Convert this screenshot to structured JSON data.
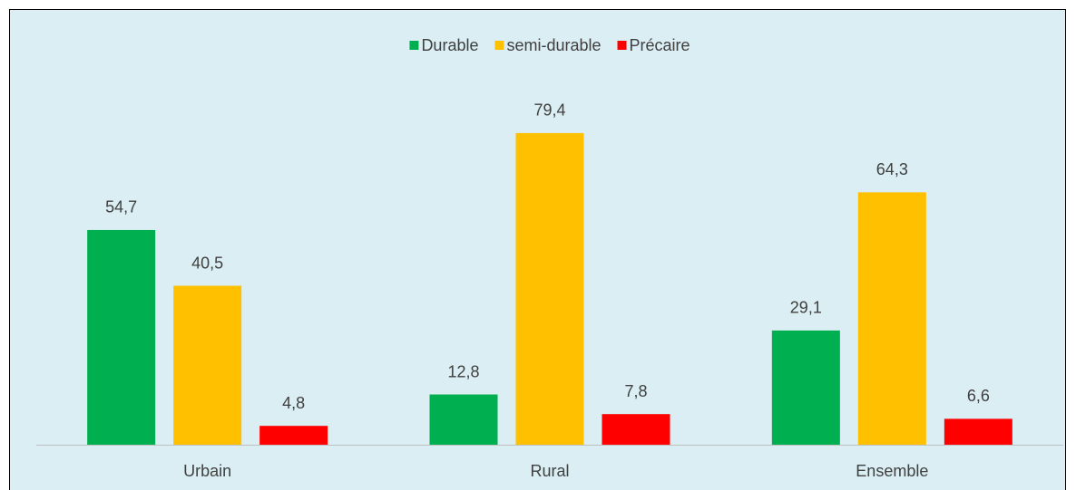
{
  "chart_data": {
    "type": "bar",
    "categories": [
      "Urbain",
      "Rural",
      "Ensemble"
    ],
    "series": [
      {
        "name": "Durable",
        "color": "#00b050",
        "values": [
          54.7,
          12.8,
          29.1
        ],
        "value_labels": [
          "54,7",
          "12,8",
          "29,1"
        ]
      },
      {
        "name": "semi-durable",
        "color": "#ffc000",
        "values": [
          40.5,
          79.4,
          64.3
        ],
        "value_labels": [
          "40,5",
          "79,4",
          "64,3"
        ]
      },
      {
        "name": "Précaire",
        "color": "#ff0000",
        "values": [
          4.8,
          7.8,
          6.6
        ],
        "value_labels": [
          "4,8",
          "7,8",
          "6,6"
        ]
      }
    ],
    "ylim": [
      0,
      90
    ],
    "legend": "top"
  }
}
